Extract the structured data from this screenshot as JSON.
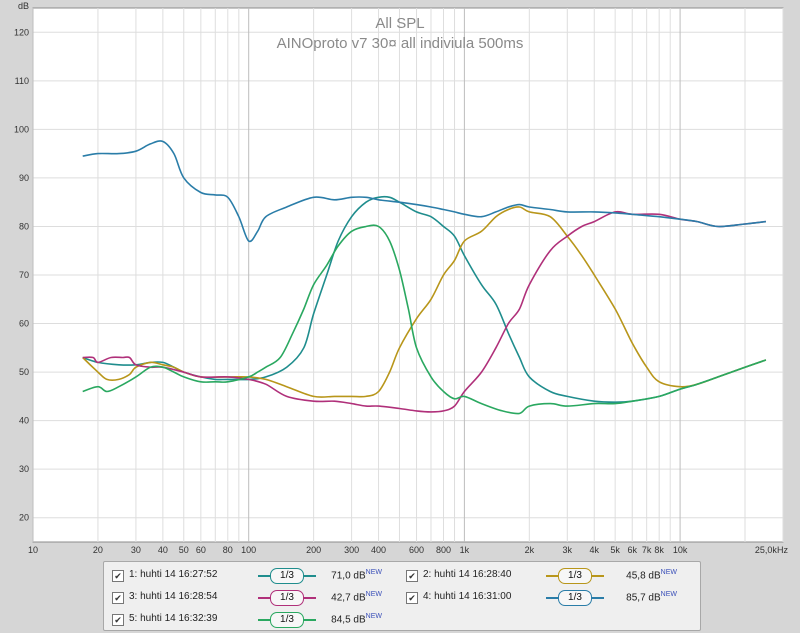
{
  "chart_data": {
    "type": "line",
    "title": "All SPL",
    "subtitle": "AINOproto v7 30¤ all indiviula 500ms",
    "ylabel": "dB",
    "xunit": "Hz",
    "xscale": "log",
    "xlim": [
      10,
      30000
    ],
    "ylim": [
      15,
      125
    ],
    "grid": true,
    "legend_position": "bottom",
    "y_ticks": [
      "20",
      "30",
      "40",
      "50",
      "60",
      "70",
      "80",
      "90",
      "100",
      "110",
      "120"
    ],
    "x_ticks": [
      {
        "v": 10,
        "label": "10"
      },
      {
        "v": 20,
        "label": "20"
      },
      {
        "v": 30,
        "label": "30"
      },
      {
        "v": 40,
        "label": "40"
      },
      {
        "v": 50,
        "label": "50"
      },
      {
        "v": 60,
        "label": "60"
      },
      {
        "v": 80,
        "label": "80"
      },
      {
        "v": 100,
        "label": "100"
      },
      {
        "v": 200,
        "label": "200"
      },
      {
        "v": 300,
        "label": "300"
      },
      {
        "v": 400,
        "label": "400"
      },
      {
        "v": 600,
        "label": "600"
      },
      {
        "v": 800,
        "label": "800"
      },
      {
        "v": 1000,
        "label": "1k"
      },
      {
        "v": 2000,
        "label": "2k"
      },
      {
        "v": 3000,
        "label": "3k"
      },
      {
        "v": 4000,
        "label": "4k"
      },
      {
        "v": 5000,
        "label": "5k"
      },
      {
        "v": 6000,
        "label": "6k"
      },
      {
        "v": 7000,
        "label": "7k"
      },
      {
        "v": 8000,
        "label": "8k"
      },
      {
        "v": 10000,
        "label": "10k"
      },
      {
        "v": 25000,
        "label": "25,0k"
      }
    ],
    "series": [
      {
        "name": "1: huhti 14 16:27:52",
        "color": "#1f8d8d",
        "smoothing": "1/3",
        "level": "71,0 dB",
        "points": [
          [
            17,
            53
          ],
          [
            20,
            52
          ],
          [
            25,
            51.5
          ],
          [
            30,
            51.5
          ],
          [
            35,
            52
          ],
          [
            40,
            52
          ],
          [
            45,
            51
          ],
          [
            50,
            50
          ],
          [
            60,
            49
          ],
          [
            70,
            48.5
          ],
          [
            80,
            48.5
          ],
          [
            100,
            48.5
          ],
          [
            120,
            49
          ],
          [
            150,
            51
          ],
          [
            180,
            55
          ],
          [
            200,
            62
          ],
          [
            230,
            70
          ],
          [
            260,
            77
          ],
          [
            300,
            82
          ],
          [
            350,
            85
          ],
          [
            400,
            86
          ],
          [
            450,
            86
          ],
          [
            500,
            85
          ],
          [
            600,
            83
          ],
          [
            700,
            82
          ],
          [
            800,
            80
          ],
          [
            900,
            78
          ],
          [
            1000,
            74
          ],
          [
            1200,
            68
          ],
          [
            1400,
            64
          ],
          [
            1600,
            58
          ],
          [
            1800,
            53
          ],
          [
            2000,
            49
          ],
          [
            2500,
            46
          ],
          [
            3000,
            45
          ],
          [
            4000,
            44
          ],
          [
            5000,
            43.8
          ],
          [
            6000,
            44
          ],
          [
            8000,
            45
          ],
          [
            10000,
            46.5
          ],
          [
            12000,
            47.5
          ],
          [
            15000,
            49
          ],
          [
            20000,
            51
          ],
          [
            25000,
            52.5
          ]
        ]
      },
      {
        "name": "2: huhti 14 16:28:40",
        "color": "#b8961a",
        "smoothing": "1/3",
        "level": "45,8 dB",
        "points": [
          [
            17,
            53
          ],
          [
            20,
            50
          ],
          [
            22,
            48.5
          ],
          [
            25,
            48.5
          ],
          [
            28,
            49.5
          ],
          [
            30,
            51
          ],
          [
            35,
            52
          ],
          [
            40,
            51.5
          ],
          [
            45,
            51
          ],
          [
            50,
            50
          ],
          [
            60,
            49
          ],
          [
            80,
            49
          ],
          [
            100,
            49
          ],
          [
            120,
            48.5
          ],
          [
            150,
            47
          ],
          [
            200,
            45
          ],
          [
            250,
            45
          ],
          [
            300,
            45
          ],
          [
            350,
            45
          ],
          [
            400,
            46
          ],
          [
            450,
            50
          ],
          [
            500,
            55
          ],
          [
            600,
            61
          ],
          [
            700,
            65
          ],
          [
            800,
            70
          ],
          [
            900,
            73
          ],
          [
            1000,
            77
          ],
          [
            1200,
            79
          ],
          [
            1400,
            82
          ],
          [
            1600,
            83.5
          ],
          [
            1800,
            84
          ],
          [
            2000,
            83
          ],
          [
            2500,
            82
          ],
          [
            3000,
            78
          ],
          [
            3500,
            74
          ],
          [
            4000,
            70
          ],
          [
            5000,
            63
          ],
          [
            6000,
            56
          ],
          [
            7000,
            51
          ],
          [
            8000,
            48
          ],
          [
            10000,
            47
          ],
          [
            12000,
            47.5
          ],
          [
            15000,
            49
          ],
          [
            20000,
            51
          ],
          [
            25000,
            52.5
          ]
        ]
      },
      {
        "name": "3: huhti 14 16:28:54",
        "color": "#b0307a",
        "smoothing": "1/3",
        "level": "42,7 dB",
        "points": [
          [
            17,
            53
          ],
          [
            19,
            53
          ],
          [
            20,
            52
          ],
          [
            23,
            53
          ],
          [
            26,
            53
          ],
          [
            28,
            53
          ],
          [
            30,
            51.5
          ],
          [
            35,
            51
          ],
          [
            40,
            51
          ],
          [
            50,
            50
          ],
          [
            60,
            49
          ],
          [
            80,
            49
          ],
          [
            100,
            48.5
          ],
          [
            120,
            47.5
          ],
          [
            150,
            45
          ],
          [
            200,
            44
          ],
          [
            250,
            44
          ],
          [
            300,
            43.5
          ],
          [
            350,
            43
          ],
          [
            400,
            43
          ],
          [
            500,
            42.5
          ],
          [
            600,
            42
          ],
          [
            700,
            41.8
          ],
          [
            800,
            42
          ],
          [
            900,
            43
          ],
          [
            1000,
            46
          ],
          [
            1200,
            50
          ],
          [
            1400,
            55
          ],
          [
            1600,
            60
          ],
          [
            1800,
            63
          ],
          [
            2000,
            68
          ],
          [
            2500,
            75
          ],
          [
            3000,
            78
          ],
          [
            3500,
            80
          ],
          [
            4000,
            81
          ],
          [
            5000,
            83
          ],
          [
            6000,
            82.5
          ],
          [
            8000,
            82.5
          ],
          [
            10000,
            81.5
          ],
          [
            12000,
            81
          ],
          [
            15000,
            80
          ],
          [
            20000,
            80.5
          ],
          [
            25000,
            81
          ]
        ]
      },
      {
        "name": "4: huhti 14 16:31:00",
        "color": "#2a7da8",
        "smoothing": "1/3",
        "level": "85,7 dB",
        "points": [
          [
            17,
            94.5
          ],
          [
            20,
            95
          ],
          [
            25,
            95
          ],
          [
            30,
            95.5
          ],
          [
            35,
            97
          ],
          [
            40,
            97.5
          ],
          [
            45,
            95
          ],
          [
            50,
            90
          ],
          [
            60,
            87
          ],
          [
            70,
            86.5
          ],
          [
            80,
            86
          ],
          [
            90,
            82
          ],
          [
            100,
            77
          ],
          [
            110,
            79
          ],
          [
            120,
            82
          ],
          [
            150,
            84
          ],
          [
            200,
            86
          ],
          [
            250,
            85.5
          ],
          [
            300,
            86
          ],
          [
            350,
            86
          ],
          [
            400,
            85.5
          ],
          [
            500,
            85
          ],
          [
            600,
            84.5
          ],
          [
            700,
            84
          ],
          [
            800,
            83.5
          ],
          [
            900,
            83
          ],
          [
            1000,
            82.5
          ],
          [
            1200,
            82
          ],
          [
            1400,
            83
          ],
          [
            1600,
            84
          ],
          [
            1800,
            84.5
          ],
          [
            2000,
            84
          ],
          [
            2500,
            83.5
          ],
          [
            3000,
            83
          ],
          [
            4000,
            83
          ],
          [
            5000,
            82.8
          ],
          [
            6000,
            82.5
          ],
          [
            8000,
            82
          ],
          [
            10000,
            81.5
          ],
          [
            12000,
            81
          ],
          [
            15000,
            80
          ],
          [
            20000,
            80.5
          ],
          [
            25000,
            81
          ]
        ]
      },
      {
        "name": "5: huhti 14 16:32:39",
        "color": "#2aa860",
        "smoothing": "1/3",
        "level": "84,5 dB",
        "points": [
          [
            17,
            46
          ],
          [
            20,
            47
          ],
          [
            22,
            46
          ],
          [
            25,
            47
          ],
          [
            30,
            49
          ],
          [
            35,
            51
          ],
          [
            40,
            51
          ],
          [
            45,
            50
          ],
          [
            50,
            49
          ],
          [
            60,
            48
          ],
          [
            70,
            48
          ],
          [
            80,
            48
          ],
          [
            100,
            49
          ],
          [
            110,
            50
          ],
          [
            120,
            51
          ],
          [
            140,
            53
          ],
          [
            160,
            58
          ],
          [
            180,
            63
          ],
          [
            200,
            68
          ],
          [
            230,
            72
          ],
          [
            260,
            76
          ],
          [
            300,
            79
          ],
          [
            350,
            80
          ],
          [
            400,
            80
          ],
          [
            450,
            77
          ],
          [
            500,
            71
          ],
          [
            550,
            63
          ],
          [
            600,
            55
          ],
          [
            700,
            49
          ],
          [
            800,
            46
          ],
          [
            900,
            44.5
          ],
          [
            1000,
            45
          ],
          [
            1200,
            43.5
          ],
          [
            1500,
            42
          ],
          [
            1800,
            41.5
          ],
          [
            2000,
            43
          ],
          [
            2500,
            43.5
          ],
          [
            3000,
            43
          ],
          [
            4000,
            43.5
          ],
          [
            5000,
            43.5
          ],
          [
            6000,
            44
          ],
          [
            8000,
            45
          ],
          [
            10000,
            46.5
          ],
          [
            12000,
            47.5
          ],
          [
            15000,
            49
          ],
          [
            20000,
            51
          ],
          [
            25000,
            52.5
          ]
        ]
      }
    ]
  },
  "legend": {
    "new_badge": "NEW",
    "entries": [
      {
        "name": "1: huhti 14 16:27:52",
        "smooth": "1/3",
        "level": "71,0 dB",
        "color": "#1f8d8d",
        "checked": "✔"
      },
      {
        "name": "2: huhti 14 16:28:40",
        "smooth": "1/3",
        "level": "45,8 dB",
        "color": "#b8961a",
        "checked": "✔"
      },
      {
        "name": "3: huhti 14 16:28:54",
        "smooth": "1/3",
        "level": "42,7 dB",
        "color": "#b0307a",
        "checked": "✔"
      },
      {
        "name": "4: huhti 14 16:31:00",
        "smooth": "1/3",
        "level": "85,7 dB",
        "color": "#2a7da8",
        "checked": "✔"
      },
      {
        "name": "5: huhti 14 16:32:39",
        "smooth": "1/3",
        "level": "84,5 dB",
        "color": "#2aa860",
        "checked": "✔"
      }
    ]
  }
}
